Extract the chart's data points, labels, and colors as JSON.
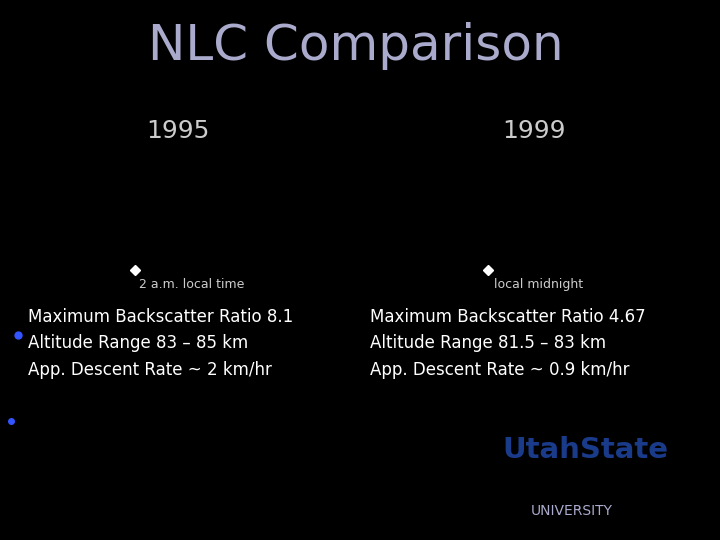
{
  "title": "NLC Comparison",
  "title_color": "#aaaacc",
  "title_fontsize": 36,
  "background_color": "#000000",
  "year_left": "1995",
  "year_right": "1999",
  "year_color": "#cccccc",
  "year_fontsize": 18,
  "label_left": "2 a.m. local time",
  "label_right": "local midnight",
  "label_color": "#cccccc",
  "label_fontsize": 9,
  "arrow_color": "#ffffff",
  "text_left_lines": [
    "Maximum Backscatter Ratio 8.1",
    "Altitude Range 83 – 85 km",
    "App. Descent Rate ~ 2 km/hr"
  ],
  "text_right_lines": [
    "Maximum Backscatter Ratio 4.67",
    "Altitude Range 81.5 – 83 km",
    "App. Descent Rate ~ 0.9 km/hr"
  ],
  "text_color": "#ffffff",
  "text_fontsize": 12,
  "utah_state_color": "#1a3a8a",
  "university_color": "#aaaacc",
  "curve_color": "#1a2fff",
  "curve_color2": "#0000cc",
  "dot_color": "#3355ff"
}
